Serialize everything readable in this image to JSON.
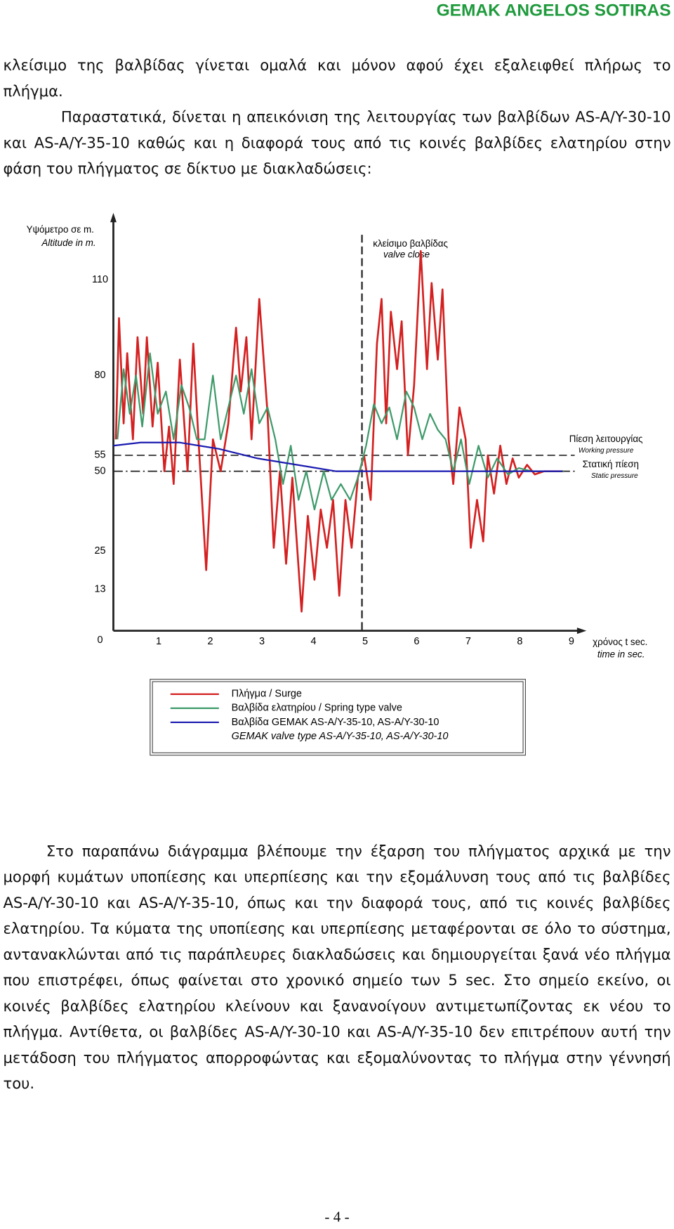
{
  "header": {
    "title": "GEMAK ANGELOS SOTIRAS"
  },
  "paragraphs": [
    "κλείσιμο της βαλβίδας γίνεται ομαλά και μόνον αφού έχει εξαλειφθεί πλήρως το πλήγμα.",
    "Παραστατικά, δίνεται η απεικόνιση της λειτουργίας των βαλβίδων AS-A/Y-30-10 και AS-A/Y-35-10 καθώς και η διαφορά τους από τις κοινές βαλβίδες ελατηρίου στην φάση του πλήγματος σε δίκτυο με διακλαδώσεις:"
  ],
  "chart_data": {
    "type": "line",
    "y_label": "Υψόμετρο σε m.",
    "y_label_en": "Altitude in m.",
    "x_label": "χρόνος t sec.",
    "x_label_en": "time in sec.",
    "xlim": [
      0,
      9.2
    ],
    "xticks": [
      1,
      2,
      3,
      4,
      5,
      6,
      7,
      8,
      9
    ],
    "ylim": [
      0,
      130
    ],
    "yticks": [
      0,
      13,
      25,
      50,
      55,
      80,
      110
    ],
    "annotations": [
      {
        "text": "κλείσιμο βαλβίδας",
        "text_en": "valve close",
        "x": 4.94
      },
      {
        "text": "Πίεση λειτουργίας",
        "text_en": "Working pressure",
        "y": 55
      },
      {
        "text": "Στατική πίεση",
        "text_en": "Static pressure",
        "y": 50
      }
    ],
    "series": [
      {
        "name": "Πλήγμα / Surge",
        "color": "#d42020",
        "x": [
          0.17,
          0.23,
          0.32,
          0.39,
          0.5,
          0.59,
          0.7,
          0.77,
          0.88,
          0.98,
          1.11,
          1.2,
          1.29,
          1.41,
          1.56,
          1.67,
          1.77,
          1.92,
          2.05,
          2.2,
          2.35,
          2.5,
          2.59,
          2.7,
          2.8,
          2.95,
          3.11,
          3.23,
          3.35,
          3.47,
          3.59,
          3.77,
          3.89,
          4.02,
          4.14,
          4.26,
          4.38,
          4.5,
          4.62,
          4.74,
          4.86,
          4.98,
          5.11,
          5.23,
          5.32,
          5.41,
          5.5,
          5.62,
          5.71,
          5.83,
          5.95,
          6.08,
          6.2,
          6.29,
          6.41,
          6.5,
          6.62,
          6.71,
          6.83,
          6.95,
          7.05,
          7.17,
          7.29,
          7.38,
          7.5,
          7.62,
          7.74,
          7.86,
          7.98,
          8.14,
          8.29,
          8.47,
          8.68,
          8.86
        ],
        "values": [
          60,
          98,
          65,
          87,
          60,
          92,
          68,
          92,
          64,
          84,
          50,
          64,
          46,
          85,
          50,
          90,
          60,
          19,
          60,
          50,
          65,
          95,
          75,
          92,
          60,
          104,
          68,
          26,
          50,
          21,
          48,
          6,
          36,
          16,
          38,
          26,
          41,
          11,
          41,
          26,
          48,
          55,
          41,
          90,
          104,
          65,
          100,
          82,
          97,
          55,
          77,
          119,
          82,
          109,
          85,
          107,
          60,
          46,
          70,
          60,
          26,
          41,
          28,
          55,
          43,
          58,
          46,
          54,
          48,
          52,
          49,
          50,
          50,
          50
        ]
      },
      {
        "name": "Βαλβίδα ελατηρίου / Spring type valve",
        "color": "#3e9a6a",
        "x": [
          0.2,
          0.32,
          0.44,
          0.56,
          0.68,
          0.83,
          0.98,
          1.14,
          1.29,
          1.44,
          1.59,
          1.74,
          1.89,
          2.05,
          2.2,
          2.35,
          2.5,
          2.65,
          2.8,
          2.95,
          3.11,
          3.26,
          3.41,
          3.56,
          3.71,
          3.86,
          4.02,
          4.2,
          4.35,
          4.53,
          4.71,
          4.86,
          5.02,
          5.17,
          5.32,
          5.47,
          5.62,
          5.8,
          5.95,
          6.11,
          6.26,
          6.41,
          6.56,
          6.71,
          6.86,
          7.02,
          7.2,
          7.38,
          7.56,
          7.77,
          7.98,
          8.23,
          8.53,
          8.86
        ],
        "values": [
          60,
          82,
          68,
          80,
          64,
          87,
          68,
          75,
          60,
          77,
          70,
          60,
          60,
          80,
          60,
          70,
          80,
          68,
          82,
          65,
          70,
          60,
          46,
          58,
          41,
          50,
          38,
          50,
          41,
          46,
          41,
          48,
          58,
          71,
          65,
          70,
          60,
          75,
          70,
          60,
          68,
          63,
          60,
          50,
          60,
          46,
          58,
          48,
          54,
          49,
          51,
          50,
          50,
          50
        ]
      },
      {
        "name": "Βαλβίδα GEMAK AS-A/Y-35-10, AS-A/Y-30-10",
        "legend_note": "GEMAK valve type AS-A/Y-35-10, AS-A/Y-30-10",
        "color": "#1a1ab0",
        "x": [
          0.12,
          0.65,
          1.41,
          2.17,
          2.92,
          3.68,
          4.44,
          5.2,
          6.11,
          7.32,
          8.83
        ],
        "values": [
          58,
          59,
          59,
          57,
          54,
          52,
          50,
          50,
          50,
          50,
          50
        ]
      }
    ]
  },
  "paragraphs_after": [
    "Στο παραπάνω διάγραμμα βλέπουμε την έξαρση του πλήγματος αρχικά με την μορφή κυμάτων υποπίεσης και υπερπίεσης και την εξομάλυνση τους από τις βαλβίδες AS-A/Y-30-10 και AS-A/Y-35-10, όπως και την διαφορά τους, από τις κοινές βαλβίδες ελατηρίου. Τα κύματα της υποπίεσης και υπερπίεσης μεταφέρονται σε όλο το σύστημα, αντανακλώνται από τις παράπλευρες διακλαδώσεις και δημιουργείται ξανά νέο πλήγμα που επιστρέφει, όπως φαίνεται στο χρονικό σημείο των 5 sec. Στο σημείο εκείνο, οι κοινές βαλβίδες ελατηρίου κλείνουν και ξανανοίγουν αντιμετωπίζοντας εκ νέου το πλήγμα. Αντίθετα, οι βαλβίδες AS-A/Y-30-10 και AS-A/Y-35-10 δεν επιτρέπουν αυτή την μετάδοση του πλήγματος απορροφώντας και εξομαλύνοντας το πλήγμα στην γέννησή του."
  ],
  "footer": {
    "page": "- 4 -"
  }
}
